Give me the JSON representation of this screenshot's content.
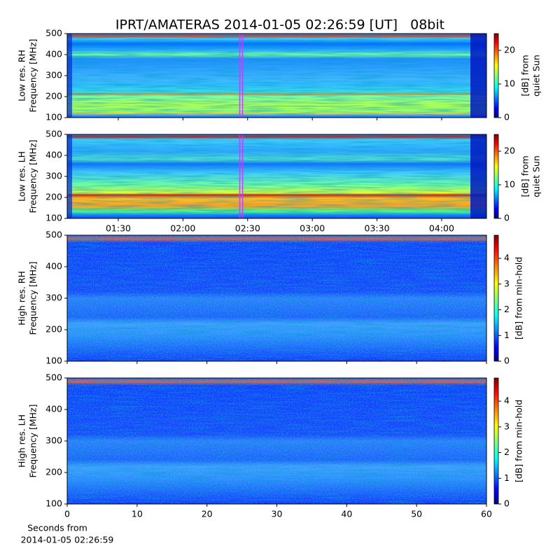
{
  "title": "IPRT/AMATERAS 2014-01-05 02:26:59 [UT]   08bit",
  "chart_data": [
    {
      "type": "heatmap",
      "ylabel": [
        "Low res. RH",
        "Frequency [MHz]"
      ],
      "ylim": [
        100,
        500
      ],
      "yticks": [
        100,
        200,
        300,
        400,
        500
      ],
      "xlim": [
        66.3,
        260.8
      ],
      "colormap": "jet",
      "clim": [
        0,
        25
      ],
      "cticks": [
        0,
        10,
        20
      ],
      "cbar_label": [
        "[dB] from",
        "quiet Sun"
      ],
      "marker_x": 147,
      "marker_color": "#c040ff"
    },
    {
      "type": "heatmap",
      "ylabel": [
        "Low res. LH",
        "Frequency [MHz]"
      ],
      "ylim": [
        100,
        500
      ],
      "yticks": [
        100,
        200,
        300,
        400,
        500
      ],
      "xlim": [
        66.3,
        260.8
      ],
      "xticks": [
        {
          "value": 90,
          "label": "01:30"
        },
        {
          "value": 120,
          "label": "02:00"
        },
        {
          "value": 150,
          "label": "02:30"
        },
        {
          "value": 180,
          "label": "03:00"
        },
        {
          "value": 210,
          "label": "03:30"
        },
        {
          "value": 240,
          "label": "04:00"
        }
      ],
      "colormap": "jet",
      "clim": [
        0,
        25
      ],
      "cticks": [
        0,
        10,
        20
      ],
      "cbar_label": [
        "[dB] from",
        "quiet Sun"
      ],
      "marker_x": 147,
      "marker_color": "#c040ff"
    },
    {
      "type": "heatmap",
      "ylabel": [
        "High res. RH",
        "Frequency [MHz]"
      ],
      "ylim": [
        100,
        500
      ],
      "yticks": [
        100,
        200,
        300,
        400,
        500
      ],
      "xlim": [
        0,
        60
      ],
      "colormap": "jet",
      "clim": [
        0,
        4.9
      ],
      "cticks": [
        0,
        1,
        2,
        3,
        4
      ],
      "cbar_label": [
        "[dB] from min-hold"
      ]
    },
    {
      "type": "heatmap",
      "ylabel": [
        "High res. LH",
        "Frequency [MHz]"
      ],
      "ylim": [
        100,
        500
      ],
      "yticks": [
        100,
        200,
        300,
        400,
        500
      ],
      "xlim": [
        0,
        60
      ],
      "xticks": [
        0,
        10,
        20,
        30,
        40,
        50,
        60
      ],
      "xlabel": [
        "Seconds from",
        "2014-01-05 02:26:59"
      ],
      "colormap": "jet",
      "clim": [
        0,
        4.9
      ],
      "cticks": [
        0,
        1,
        2,
        3,
        4
      ],
      "cbar_label": [
        "[dB] from min-hold"
      ]
    }
  ]
}
